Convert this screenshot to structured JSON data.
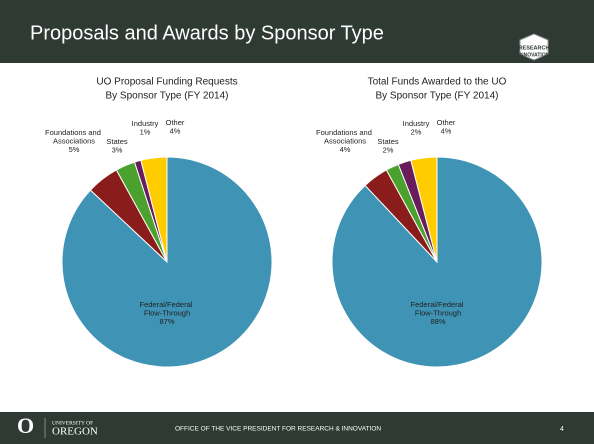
{
  "slide": {
    "title": "Proposals and Awards by Sponsor Type",
    "logo": [
      "RESEARCH",
      "INNOVATION"
    ],
    "footer": {
      "university": "UNIVERSITY OF",
      "name": "OREGON",
      "office": "OFFICE OF THE VICE PRESIDENT FOR RESEARCH & INNOVATION",
      "page": "4"
    }
  },
  "chart_data": [
    {
      "type": "pie",
      "title": [
        "UO Proposal Funding Requests",
        "By Sponsor Type (FY 2014)"
      ],
      "categories": [
        "Federal/Federal Flow-Through",
        "Foundations and Associations",
        "States",
        "Industry",
        "Other"
      ],
      "values": [
        87,
        5,
        3,
        1,
        4
      ],
      "value_labels": [
        "87%",
        "5%",
        "3%",
        "1%",
        "4%"
      ],
      "colors": [
        "#3f93b5",
        "#8a1c1c",
        "#4aa12e",
        "#6a1b5c",
        "#ffcc00"
      ]
    },
    {
      "type": "pie",
      "title": [
        "Total Funds Awarded to the UO",
        "By Sponsor Type (FY 2014)"
      ],
      "categories": [
        "Federal/Federal Flow-Through",
        "Foundations and Associations",
        "States",
        "Industry",
        "Other"
      ],
      "values": [
        88,
        4,
        2,
        2,
        4
      ],
      "value_labels": [
        "88%",
        "4%",
        "2%",
        "2%",
        "4%"
      ],
      "colors": [
        "#3f93b5",
        "#8a1c1c",
        "#4aa12e",
        "#6a1b5c",
        "#ffcc00"
      ]
    }
  ]
}
